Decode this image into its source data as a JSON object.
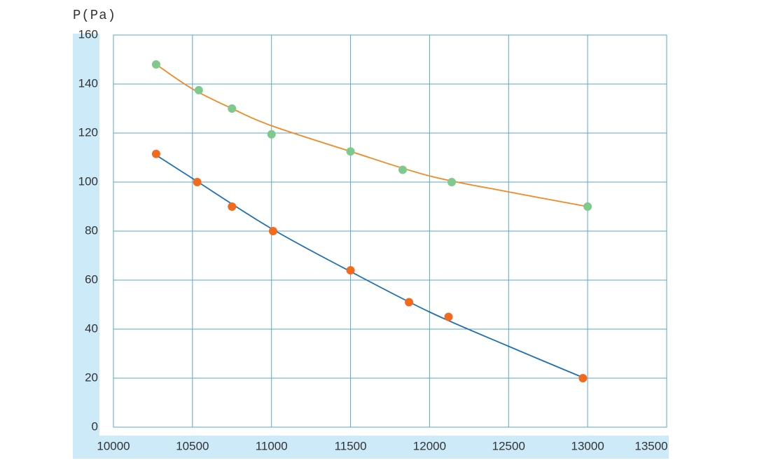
{
  "chart_data": {
    "type": "scatter",
    "y_label": "P(Pa)",
    "xlim": [
      10000,
      13500
    ],
    "ylim": [
      0,
      160
    ],
    "xticks": [
      10000,
      10500,
      11000,
      11500,
      12000,
      12500,
      13000,
      13500
    ],
    "yticks": [
      0,
      20,
      40,
      60,
      80,
      100,
      120,
      140,
      160
    ],
    "grid": true,
    "series": [
      {
        "mode": "line",
        "color": "#f08a24",
        "x": [
          10270,
          10500,
          10750,
          11000,
          11500,
          12000,
          12500,
          13000
        ],
        "values": [
          148,
          138,
          130,
          123,
          112.5,
          102.5,
          96,
          90
        ]
      },
      {
        "mode": "line",
        "color": "#1f6fb5",
        "x": [
          10270,
          10500,
          11000,
          11500,
          12000,
          12500,
          12980
        ],
        "values": [
          111,
          101.5,
          81,
          63.5,
          47,
          33,
          20
        ]
      },
      {
        "mode": "markers",
        "color": "#7ec98c",
        "x": [
          10270,
          10540,
          10750,
          11000,
          11500,
          11830,
          12140,
          13000
        ],
        "values": [
          148,
          137.5,
          130,
          119.5,
          112.5,
          105,
          100,
          90
        ]
      },
      {
        "mode": "markers",
        "color": "#f26b1d",
        "x": [
          10270,
          10530,
          10750,
          11010,
          11500,
          11870,
          12120,
          12970
        ],
        "values": [
          111.5,
          100,
          90,
          80,
          64,
          51,
          45,
          20
        ]
      }
    ]
  }
}
